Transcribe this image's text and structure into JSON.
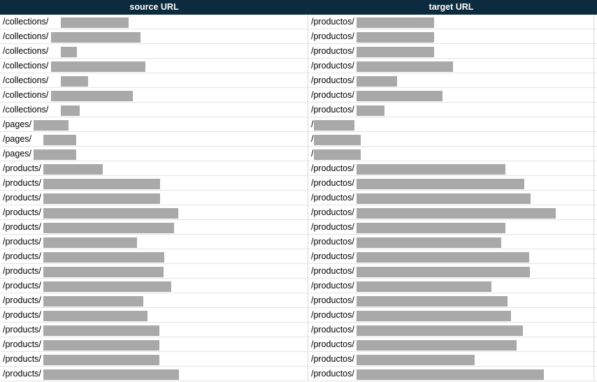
{
  "table": {
    "headers": {
      "source": "source URL",
      "target": "target URL"
    },
    "rows": [
      {
        "source": "/collections/",
        "target": "/productos/"
      },
      {
        "source": "/collections/",
        "target": "/productos/"
      },
      {
        "source": "/collections/",
        "target": "/productos/"
      },
      {
        "source": "/collections/",
        "target": "/productos/"
      },
      {
        "source": "/collections/",
        "target": "/productos/"
      },
      {
        "source": "/collections/",
        "target": "/productos/"
      },
      {
        "source": "/collections/",
        "target": "/productos/"
      },
      {
        "source": "/pages/",
        "target": "/"
      },
      {
        "source": "/pages/",
        "target": "/"
      },
      {
        "source": "/pages/",
        "target": "/"
      },
      {
        "source": "/products/",
        "target": "/productos/"
      },
      {
        "source": "/products/",
        "target": "/productos/"
      },
      {
        "source": "/products/",
        "target": "/productos/"
      },
      {
        "source": "/products/",
        "target": "/productos/"
      },
      {
        "source": "/products/",
        "target": "/productos/"
      },
      {
        "source": "/products/",
        "target": "/productos/"
      },
      {
        "source": "/products/",
        "target": "/productos/"
      },
      {
        "source": "/products/",
        "target": "/productos/"
      },
      {
        "source": "/products/",
        "target": "/productos/"
      },
      {
        "source": "/products/",
        "target": "/productos/"
      },
      {
        "source": "/products/",
        "target": "/productos/"
      },
      {
        "source": "/products/",
        "target": "/productos/"
      },
      {
        "source": "/products/",
        "target": "/productos/"
      },
      {
        "source": "/products/",
        "target": "/productos/"
      },
      {
        "source": "/products/",
        "target": "/productos/"
      }
    ]
  },
  "colors": {
    "header_bg": "#0c2b3e",
    "header_text": "#ffffff",
    "redaction": "#a9a9a9",
    "grid": "#e3e3e3"
  }
}
